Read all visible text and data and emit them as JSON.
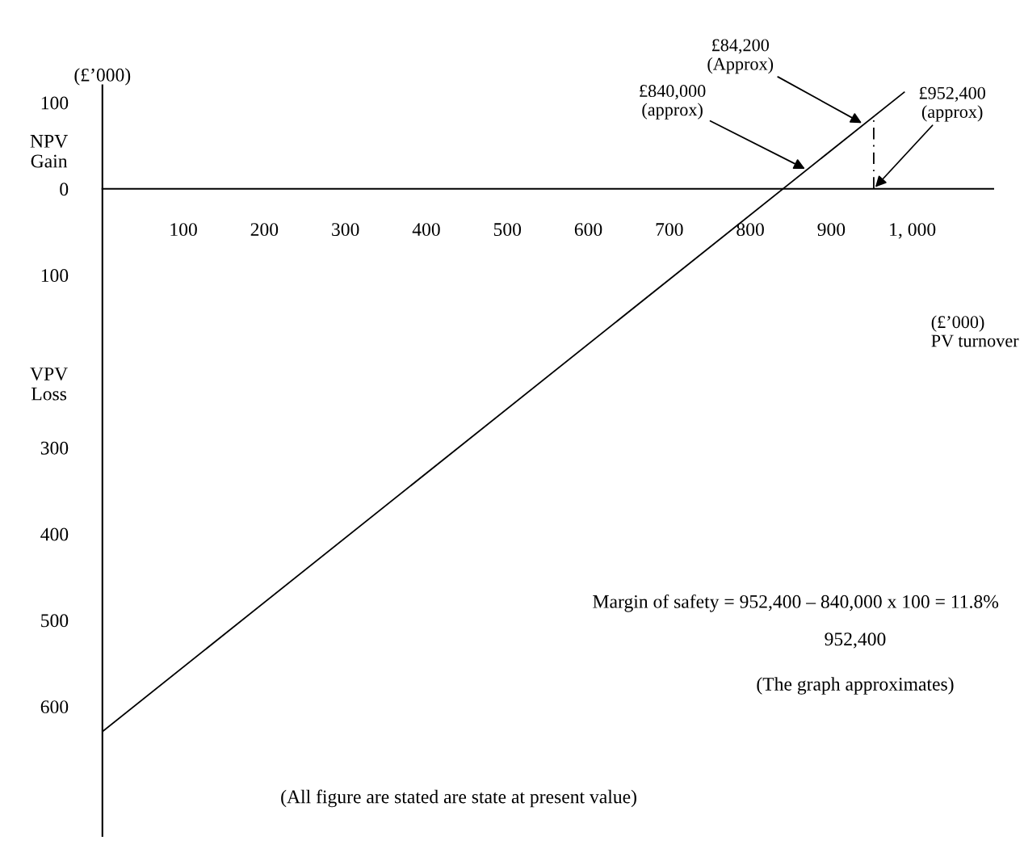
{
  "chart_data": {
    "type": "line",
    "ylabel": "(£’000)",
    "xlabel": "(£’000)\nPV turnover",
    "xlim": [
      0,
      1100
    ],
    "ylim": [
      -750,
      120
    ],
    "xticks": [
      100,
      200,
      300,
      400,
      500,
      600,
      700,
      800,
      900,
      {
        "value": 1000,
        "label": "1, 000"
      }
    ],
    "yticks": [
      100,
      0,
      {
        "value": -100,
        "label": "100"
      },
      {
        "value": -300,
        "label": "300"
      },
      {
        "value": -400,
        "label": "400"
      },
      {
        "value": -500,
        "label": "500"
      },
      {
        "value": -600,
        "label": "600"
      }
    ],
    "series": [
      {
        "color": "#000000",
        "x": [
          0,
          990
        ],
        "values": [
          -629,
          112
        ],
        "line_style": "solid"
      },
      {
        "color": "#000000",
        "x": [
          952.4,
          952.4
        ],
        "values": [
          0,
          84.2
        ],
        "line_style": "dashed"
      }
    ],
    "annotations": [
      {
        "text": "£84,200\n(Approx)",
        "x": 940,
        "y": 75
      },
      {
        "text": "£840,000\n(approx)",
        "x": 870,
        "y": 22
      },
      {
        "text": "£952,400\n(approx)",
        "x": 952.4,
        "y": 0
      },
      "NPV\nGain",
      "VPV\nLoss",
      "Margin of safety = 952,400 – 840,000 x 100 = 11.8%",
      "952,400",
      "(The graph approximates)",
      "(All figure are stated are state at present value)"
    ],
    "grid": false,
    "legend": false,
    "marker": "none"
  }
}
